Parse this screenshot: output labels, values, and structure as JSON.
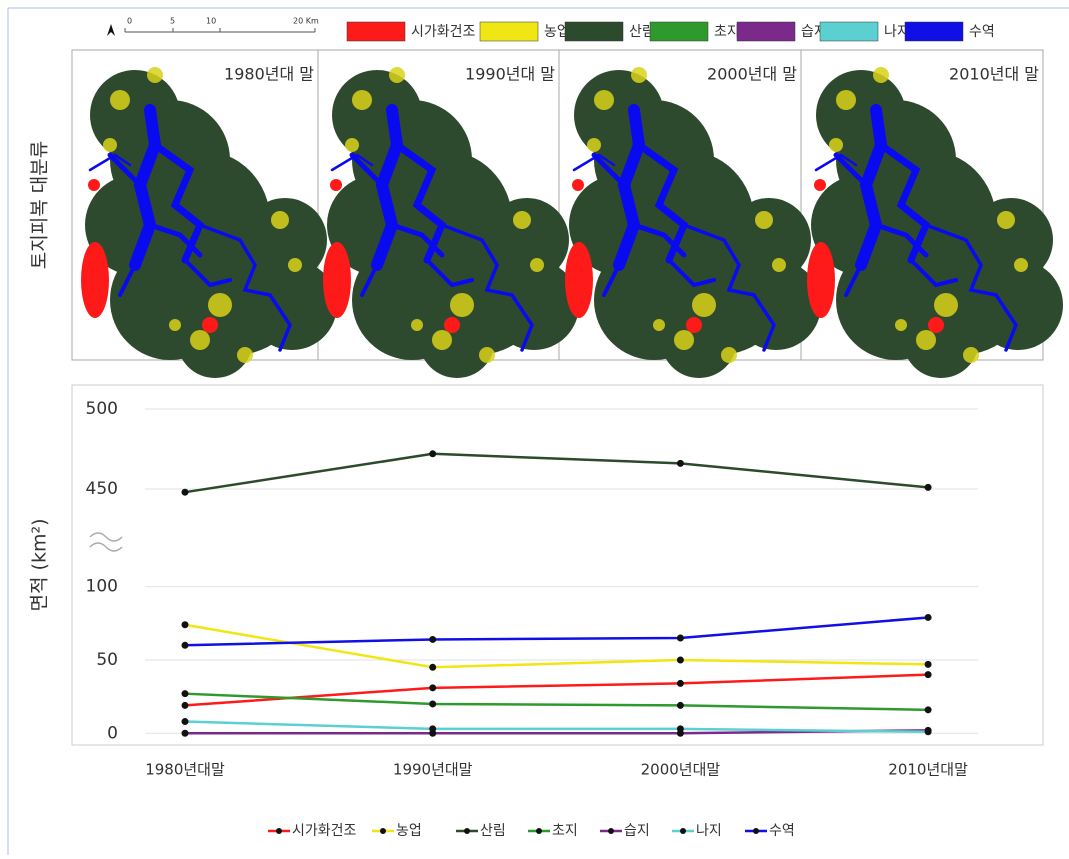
{
  "map_figure": {
    "y_label": "토지피복 대분류",
    "scale_labels": [
      "0",
      "5",
      "10",
      "20 Km"
    ],
    "panel_labels": [
      "1980년대 말",
      "1990년대 말",
      "2000년대 말",
      "2010년대 말"
    ]
  },
  "chart_data": {
    "type": "line",
    "y_label": "면적 (km²)",
    "categories": [
      "1980년대말",
      "1990년대말",
      "2000년대말",
      "2010년대말"
    ],
    "series": [
      {
        "name": "시가화건조",
        "color": "#ff1a1a",
        "values": [
          19,
          31,
          34,
          40
        ]
      },
      {
        "name": "농업",
        "color": "#f0e614",
        "values": [
          74,
          45,
          50,
          47
        ]
      },
      {
        "name": "산림",
        "color": "#2c4a2c",
        "values": [
          448,
          472,
          466,
          451
        ]
      },
      {
        "name": "초지",
        "color": "#2e9a2e",
        "values": [
          27,
          20,
          19,
          16
        ]
      },
      {
        "name": "습지",
        "color": "#7b2a8c",
        "values": [
          0,
          0,
          0,
          2
        ]
      },
      {
        "name": "나지",
        "color": "#5cd0d0",
        "values": [
          8,
          3,
          3,
          1
        ]
      },
      {
        "name": "수역",
        "color": "#1010e6",
        "values": [
          60,
          64,
          65,
          79
        ]
      }
    ],
    "ylim": [
      -8,
      510
    ],
    "y_break": [
      110,
      435
    ],
    "yticks": [
      0,
      50,
      100,
      450,
      500
    ],
    "grid": true,
    "legend": "bottom"
  }
}
